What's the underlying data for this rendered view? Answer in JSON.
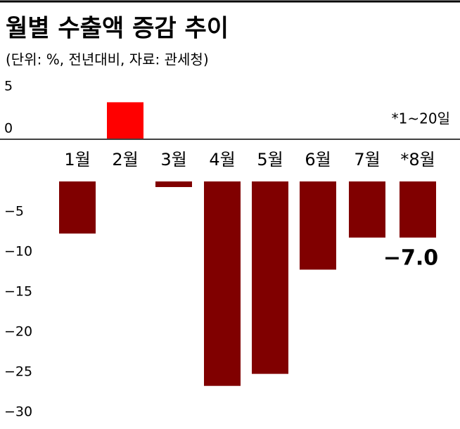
{
  "chart_data": {
    "type": "bar",
    "title": "월별 수출액  증감 추이",
    "subtitle": "(단위: %, 전년대비, 자료: 관세청)",
    "annotation": "*1~20일",
    "categories": [
      "1월",
      "2월",
      "3월",
      "4월",
      "5월",
      "6월",
      "7월",
      "*8월"
    ],
    "values": [
      -6.5,
      4.3,
      -0.7,
      -25.5,
      -24,
      -11,
      -7,
      -7.0
    ],
    "value_labels": [
      null,
      null,
      null,
      null,
      null,
      null,
      null,
      "−7.0"
    ],
    "colors": [
      "#800000",
      "#ff0000",
      "#800000",
      "#800000",
      "#800000",
      "#800000",
      "#800000",
      "#800000"
    ],
    "ylim": [
      -30,
      5
    ],
    "yticks": [
      5,
      0,
      {
        "value": -5,
        "label": "−5"
      },
      {
        "value": -10,
        "label": "−10"
      },
      {
        "value": -15,
        "label": "−15"
      },
      {
        "value": -20,
        "label": "−20"
      },
      {
        "value": -25,
        "label": "−25"
      },
      {
        "value": -30,
        "label": "−30"
      }
    ]
  }
}
